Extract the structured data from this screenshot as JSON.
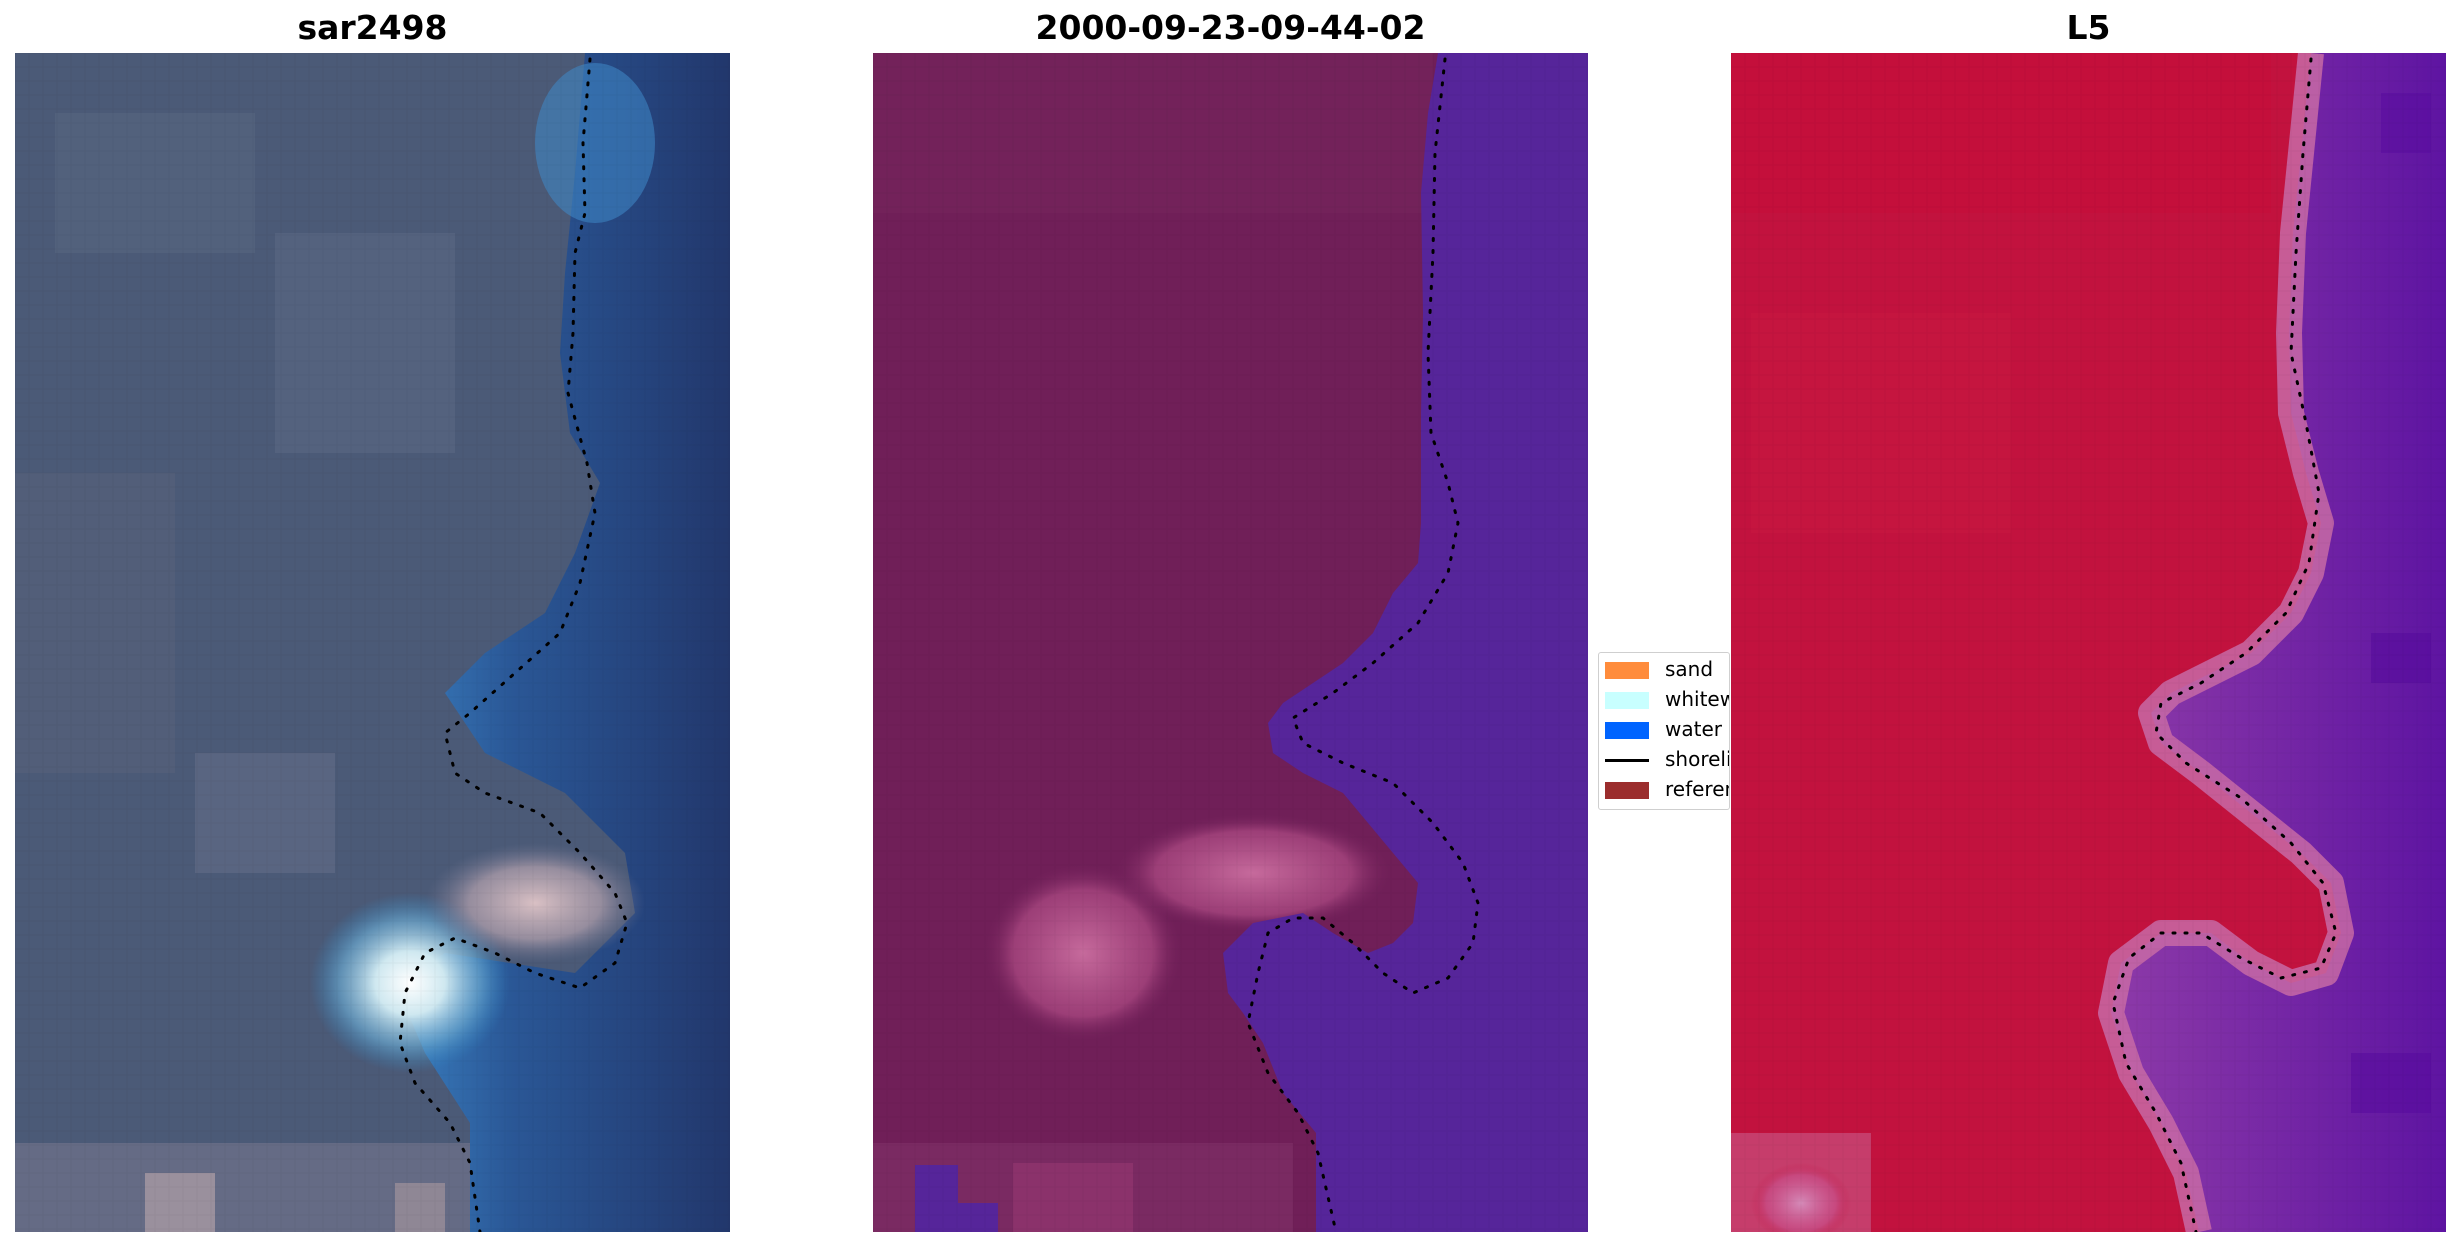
{
  "panels": [
    {
      "title": "sar2498"
    },
    {
      "title": "2000-09-23-09-44-02"
    },
    {
      "title": "L5"
    }
  ],
  "legend": {
    "items": [
      {
        "label": "sand",
        "color": "#ff8c3c",
        "kind": "patch"
      },
      {
        "label": "whitewater",
        "color": "#c8ffff",
        "kind": "patch"
      },
      {
        "label": "water",
        "color": "#0064ff",
        "kind": "patch"
      },
      {
        "label": "shoreline",
        "color": "#000000",
        "kind": "line"
      },
      {
        "label": "reference",
        "color": "#9b2d2d",
        "kind": "patch"
      }
    ]
  },
  "colors": {
    "rgb_land": "#4a5a78",
    "rgb_water": "#23386e",
    "rgb_surf": "#2f86c4",
    "class_land": "#6f1e58",
    "class_water": "#56259a",
    "class_edge": "#b8508c",
    "index_land": "#c0103c",
    "index_water": "#6a18a4",
    "index_edge": "#c86aa6"
  }
}
